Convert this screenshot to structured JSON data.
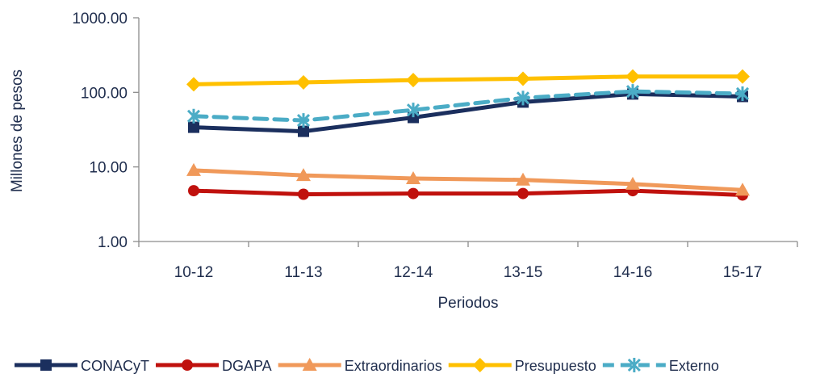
{
  "chart_data": {
    "type": "line",
    "title": "",
    "xlabel": "Periodos",
    "ylabel": "Millones de pesos",
    "y_scale": "log",
    "ylim": [
      1,
      1000
    ],
    "y_ticks": [
      "1.00",
      "10.00",
      "100.00",
      "1000.00"
    ],
    "y_tick_values": [
      1,
      10,
      100,
      1000
    ],
    "categories": [
      "10-12",
      "11-13",
      "12-14",
      "13-15",
      "14-16",
      "15-17"
    ],
    "grid": false,
    "legend_position": "bottom",
    "series": [
      {
        "name": "CONACyT",
        "color": "#1b2f5e",
        "marker": "square",
        "dash": false,
        "values": [
          34,
          30,
          46,
          74,
          95,
          88
        ]
      },
      {
        "name": "DGAPA",
        "color": "#c0110d",
        "marker": "circle",
        "dash": false,
        "values": [
          4.8,
          4.3,
          4.4,
          4.4,
          4.8,
          4.2
        ]
      },
      {
        "name": "Extraordinarios",
        "color": "#f0995a",
        "marker": "triangle",
        "dash": false,
        "values": [
          9.0,
          7.7,
          7.0,
          6.7,
          5.9,
          4.9
        ]
      },
      {
        "name": "Presupuesto",
        "color": "#ffc000",
        "marker": "diamond",
        "dash": false,
        "values": [
          128,
          136,
          146,
          152,
          163,
          163
        ]
      },
      {
        "name": "Externo",
        "color": "#4bacc6",
        "marker": "asterisk",
        "dash": true,
        "values": [
          48,
          42,
          58,
          84,
          103,
          96
        ]
      }
    ]
  }
}
